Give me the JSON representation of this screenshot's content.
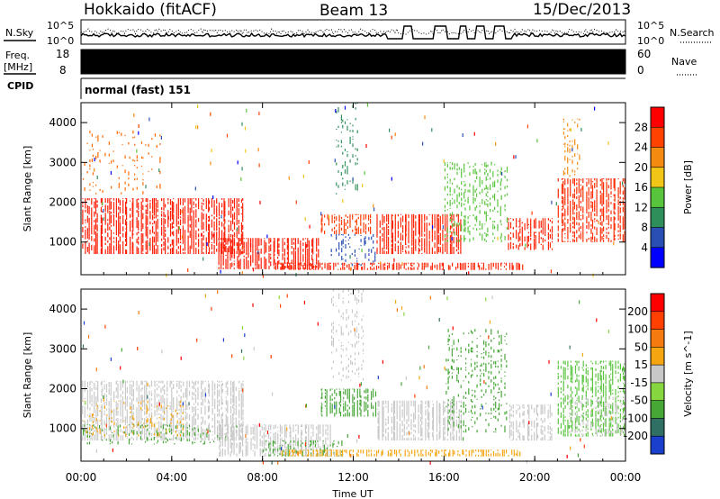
{
  "header": {
    "station": "Hokkaido (fitACF)",
    "beam": "Beam 13",
    "date": "15/Dec/2013"
  },
  "top_panels": {
    "nsky_label": "N.Sky",
    "nsearch_label": "N.Search",
    "freq_label_line1": "Freq.",
    "freq_label_line2": "[MHz]",
    "nave_label": "Nave",
    "cpid_label": "CPID",
    "cpid_text": "normal (fast) 151",
    "noise_ticks": [
      "10^5",
      "10^0"
    ],
    "freq_ticks": [
      "18",
      "8"
    ],
    "nave_ticks": [
      "60",
      "0"
    ]
  },
  "chart_data": [
    {
      "type": "heatmap",
      "name": "power-panel",
      "ylabel": "Slant Range [km]",
      "xlabel": "",
      "x_ticks": [
        "00:00",
        "04:00",
        "08:00",
        "12:00",
        "16:00",
        "20:00",
        "00:00"
      ],
      "xlim_hours": [
        0,
        24
      ],
      "ylim_km": [
        180,
        4500
      ],
      "y_ticks": [
        1000,
        2000,
        3000,
        4000
      ],
      "colorbar": {
        "label": "Power [dB]",
        "ticks": [
          "4",
          "8",
          "12",
          "16",
          "20",
          "24",
          "28"
        ],
        "colors": [
          "#0000ff",
          "#2a4fb4",
          "#2f8f5a",
          "#58c43c",
          "#f2c617",
          "#f58a10",
          "#ff4200",
          "#ff0000"
        ]
      },
      "regions": [
        {
          "t0": 0.0,
          "t1": 7.2,
          "r0": 700,
          "r1": 2100,
          "color": "#ff1a00",
          "density": 0.75
        },
        {
          "t0": 0.0,
          "t1": 3.5,
          "r0": 2200,
          "r1": 3800,
          "color": "#ff6a00",
          "density": 0.1
        },
        {
          "t0": 6.0,
          "t1": 10.5,
          "r0": 320,
          "r1": 1100,
          "color": "#ff1a00",
          "density": 0.8
        },
        {
          "t0": 10.5,
          "t1": 12.8,
          "r0": 1200,
          "r1": 1700,
          "color": "#ff3a00",
          "density": 0.55
        },
        {
          "t0": 11.0,
          "t1": 13.0,
          "r0": 400,
          "r1": 1200,
          "color": "#2a4fb4",
          "density": 0.25
        },
        {
          "t0": 11.2,
          "t1": 12.2,
          "r0": 2200,
          "r1": 4500,
          "color": "#2f8f5a",
          "density": 0.2
        },
        {
          "t0": 13.0,
          "t1": 16.8,
          "r0": 700,
          "r1": 1700,
          "color": "#ff2000",
          "density": 0.8
        },
        {
          "t0": 8.5,
          "t1": 19.5,
          "r0": 300,
          "r1": 480,
          "color": "#ff2000",
          "density": 0.7
        },
        {
          "t0": 16.0,
          "t1": 18.8,
          "r0": 1000,
          "r1": 3000,
          "color": "#58c43c",
          "density": 0.3
        },
        {
          "t0": 18.8,
          "t1": 20.8,
          "r0": 800,
          "r1": 1600,
          "color": "#ff2000",
          "density": 0.65
        },
        {
          "t0": 21.0,
          "t1": 24.0,
          "r0": 1000,
          "r1": 2600,
          "color": "#ff2a00",
          "density": 0.7
        },
        {
          "t0": 21.2,
          "t1": 22.0,
          "r0": 2600,
          "r1": 4100,
          "color": "#f58a10",
          "density": 0.25
        }
      ]
    },
    {
      "type": "heatmap",
      "name": "velocity-panel",
      "ylabel": "Slant Range [km]",
      "xlabel": "Time UT",
      "x_ticks": [
        "00:00",
        "04:00",
        "08:00",
        "12:00",
        "16:00",
        "20:00",
        "00:00"
      ],
      "xlim_hours": [
        0,
        24
      ],
      "ylim_km": [
        180,
        4500
      ],
      "y_ticks": [
        1000,
        2000,
        3000,
        4000
      ],
      "colorbar": {
        "label": "Velocity [m s^-1]",
        "ticks": [
          "200",
          "100",
          "50",
          "15",
          "-15",
          "-50",
          "-100",
          "-200"
        ],
        "colors": [
          "#1a3fcc",
          "#2f6f64",
          "#46a636",
          "#86d640",
          "#c8c8c8",
          "#f5a510",
          "#f57a10",
          "#ff4000",
          "#ff0000"
        ]
      },
      "regions": [
        {
          "t0": 0.0,
          "t1": 7.2,
          "r0": 700,
          "r1": 2200,
          "color": "#c8c8c8",
          "density": 0.7
        },
        {
          "t0": 0.0,
          "t1": 4.5,
          "r0": 800,
          "r1": 1700,
          "color": "#f5a510",
          "density": 0.15
        },
        {
          "t0": 0.0,
          "t1": 7.0,
          "r0": 600,
          "r1": 1100,
          "color": "#46a636",
          "density": 0.18
        },
        {
          "t0": 6.0,
          "t1": 11.0,
          "r0": 300,
          "r1": 1100,
          "color": "#c8c8c8",
          "density": 0.75
        },
        {
          "t0": 8.0,
          "t1": 11.5,
          "r0": 300,
          "r1": 700,
          "color": "#46a636",
          "density": 0.35
        },
        {
          "t0": 10.5,
          "t1": 13.0,
          "r0": 1300,
          "r1": 2000,
          "color": "#46a636",
          "density": 0.6
        },
        {
          "t0": 11.0,
          "t1": 12.5,
          "r0": 2200,
          "r1": 4500,
          "color": "#c8c8c8",
          "density": 0.22
        },
        {
          "t0": 13.0,
          "t1": 16.8,
          "r0": 700,
          "r1": 1700,
          "color": "#c8c8c8",
          "density": 0.8
        },
        {
          "t0": 8.8,
          "t1": 19.5,
          "r0": 300,
          "r1": 470,
          "color": "#f5a510",
          "density": 0.7
        },
        {
          "t0": 16.0,
          "t1": 18.8,
          "r0": 900,
          "r1": 3500,
          "color": "#46a636",
          "density": 0.22
        },
        {
          "t0": 18.8,
          "t1": 20.8,
          "r0": 700,
          "r1": 1600,
          "color": "#c8c8c8",
          "density": 0.6
        },
        {
          "t0": 21.0,
          "t1": 24.0,
          "r0": 800,
          "r1": 2700,
          "color": "#58c43c",
          "density": 0.55
        },
        {
          "t0": 21.5,
          "t1": 24.0,
          "r0": 800,
          "r1": 1800,
          "color": "#c8c8c8",
          "density": 0.35
        }
      ]
    }
  ]
}
